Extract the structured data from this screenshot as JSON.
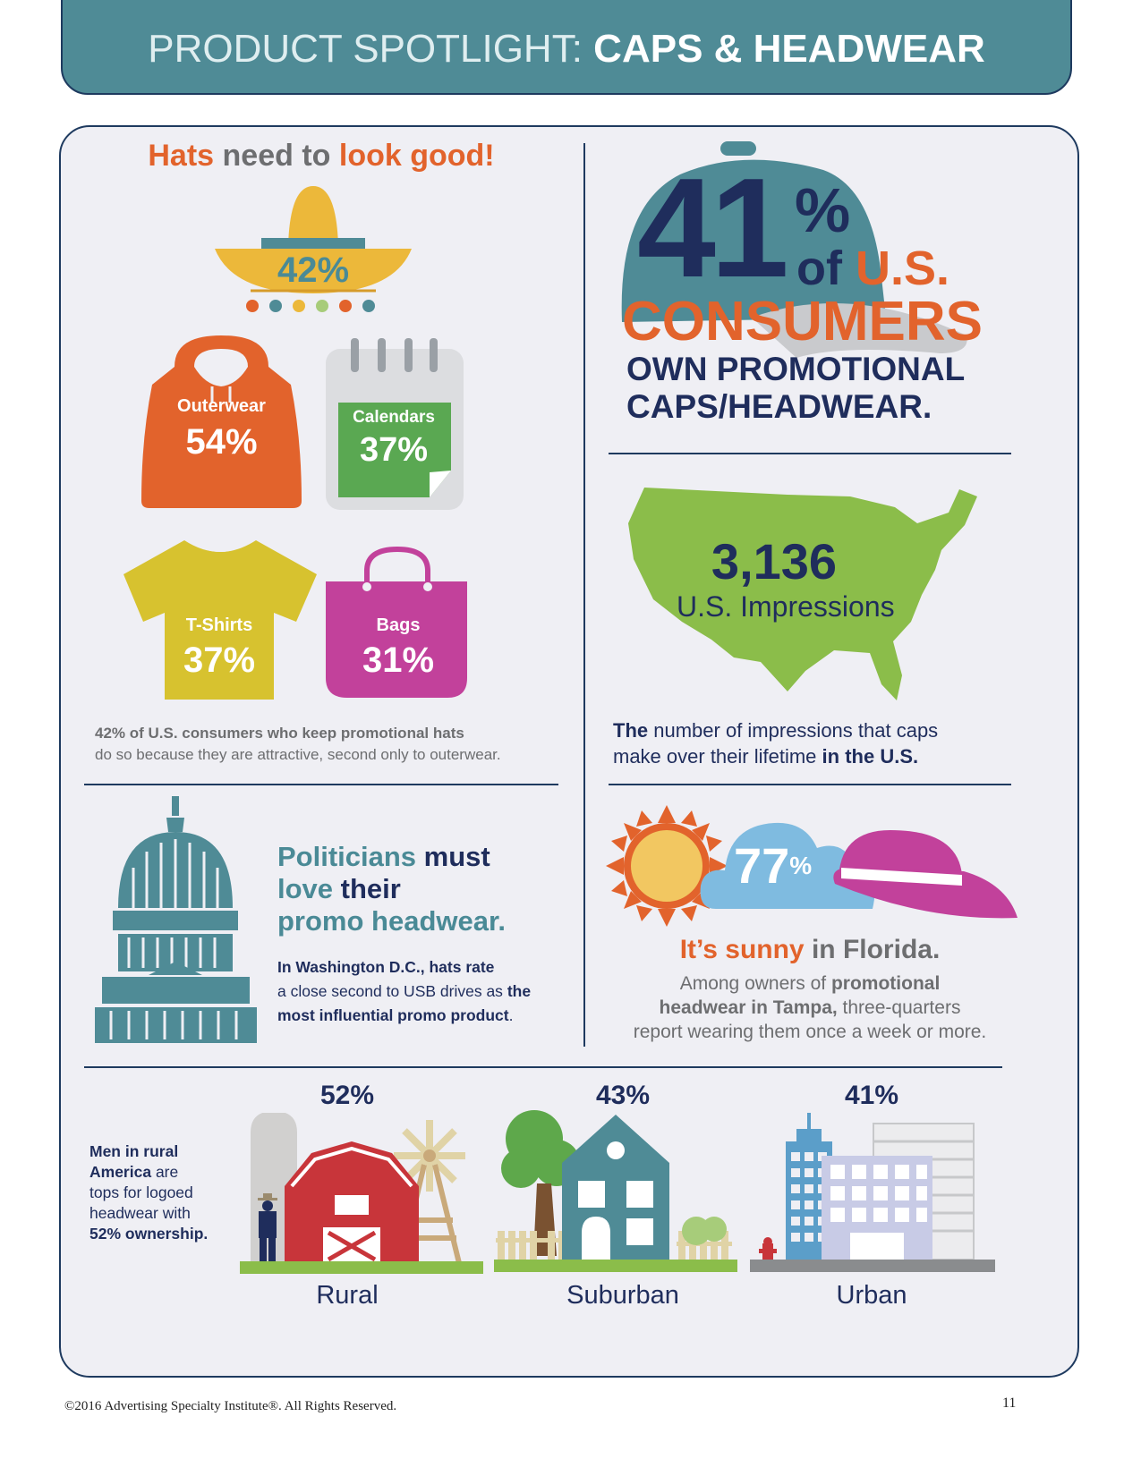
{
  "header": {
    "light": "PRODUCT SPOTLIGHT:",
    "bold": "CAPS & HEADWEAR"
  },
  "looks": {
    "title_a": "Hats",
    "title_b": "need to",
    "title_c": "look good!",
    "hat_pct": "42%",
    "outerwear_label": "Outerwear",
    "outerwear_pct": "54%",
    "calendars_label": "Calendars",
    "calendars_pct": "37%",
    "tshirts_label": "T-Shirts",
    "tshirts_pct": "37%",
    "bags_label": "Bags",
    "bags_pct": "31%",
    "caption_bold": "42% of U.S. consumers who keep promotional hats",
    "caption_rest": "do so because they are attractive, second only to outerwear."
  },
  "consumers": {
    "number": "41",
    "pct": "%",
    "of": "of",
    "us": "U.S.",
    "consumers": "CONSUMERS",
    "line1": "OWN PROMOTIONAL",
    "line2": "CAPS/HEADWEAR."
  },
  "impressions": {
    "number": "3,136",
    "label": "U.S. Impressions",
    "cap_a": "The",
    "cap_b": "number of impressions that caps",
    "cap_c": "make over their lifetime",
    "cap_d": "in the U.S."
  },
  "politicians": {
    "t1a": "Politicians",
    "t1b": "must",
    "t2a": "love",
    "t2b": "their",
    "t3": "promo headwear.",
    "b1": "In Washington D.C., hats rate",
    "b2a": "a close second to USB drives as",
    "b2b": "the",
    "b3": "most influential promo product",
    "b3end": "."
  },
  "florida": {
    "pct": "77",
    "pct_sign": "%",
    "title_a": "It’s sunny",
    "title_b": "in Florida.",
    "l1a": "Among owners of",
    "l1b": "promotional",
    "l2a": "headwear in Tampa,",
    "l2b": "three-quarters",
    "l3": "report wearing them once a week or more."
  },
  "rural": {
    "t1": "Men in rural",
    "t2a": "America",
    "t2b": "are",
    "t3": "tops for logoed",
    "t4": "headwear with",
    "t5": "52% ownership."
  },
  "areas": [
    {
      "pct": "52%",
      "label": "Rural"
    },
    {
      "pct": "43%",
      "label": "Suburban"
    },
    {
      "pct": "41%",
      "label": "Urban"
    }
  ],
  "footer": {
    "copyright": "©2016 Advertising Specialty Institute®. All Rights Reserved.",
    "page": "11"
  },
  "colors": {
    "teal": "#4f8b96",
    "navy": "#1f2d5c",
    "orange": "#e2632c",
    "yellow": "#ecb83a",
    "green": "#8bbd4a",
    "magenta": "#c2419b",
    "sky": "#7fbbe0",
    "red": "#c8353a"
  }
}
